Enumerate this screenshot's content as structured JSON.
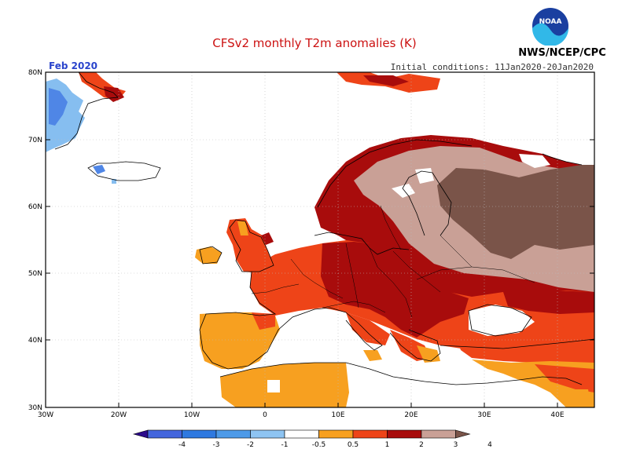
{
  "header": {
    "title": "CFSv2 monthly T2m anomalies (K)",
    "organization": "NWS/NCEP/CPC",
    "logo_text": "NOAA",
    "month_label": "Feb 2020",
    "initial_conditions": "Initial conditions: 11Jan2020-20Jan2020"
  },
  "map": {
    "lat_labels": [
      "80N",
      "70N",
      "60N",
      "50N",
      "40N",
      "30N"
    ],
    "lon_labels": [
      "30W",
      "20W",
      "10W",
      "0",
      "10E",
      "20E",
      "30E",
      "40E"
    ],
    "lat_range": [
      30,
      80
    ],
    "lon_range": [
      -30,
      45
    ],
    "grid_lines": "dotted",
    "colors": {
      "cold_deep": "#3355dd",
      "cold_mid": "#4f86e6",
      "cold_light": "#86bef0",
      "neutral": "#ffffff",
      "warm_0_5_1": "#f7a020",
      "warm_1_2": "#ee4418",
      "warm_2_3": "#a80c0c",
      "warm_3_4": "#c9a096",
      "warm_4_plus": "#7a5449"
    }
  },
  "legend": {
    "labels": [
      "-4",
      "-3",
      "-2",
      "-1",
      "-0.5",
      "0.5",
      "1",
      "2",
      "3",
      "4"
    ],
    "colors": [
      "#2b0a8a",
      "#4466dd",
      "#2e79e0",
      "#4d9ae8",
      "#8ec4f2",
      "#ffffff",
      "#f7a020",
      "#ee4418",
      "#a80c0c",
      "#c9a096",
      "#7a5449"
    ]
  }
}
